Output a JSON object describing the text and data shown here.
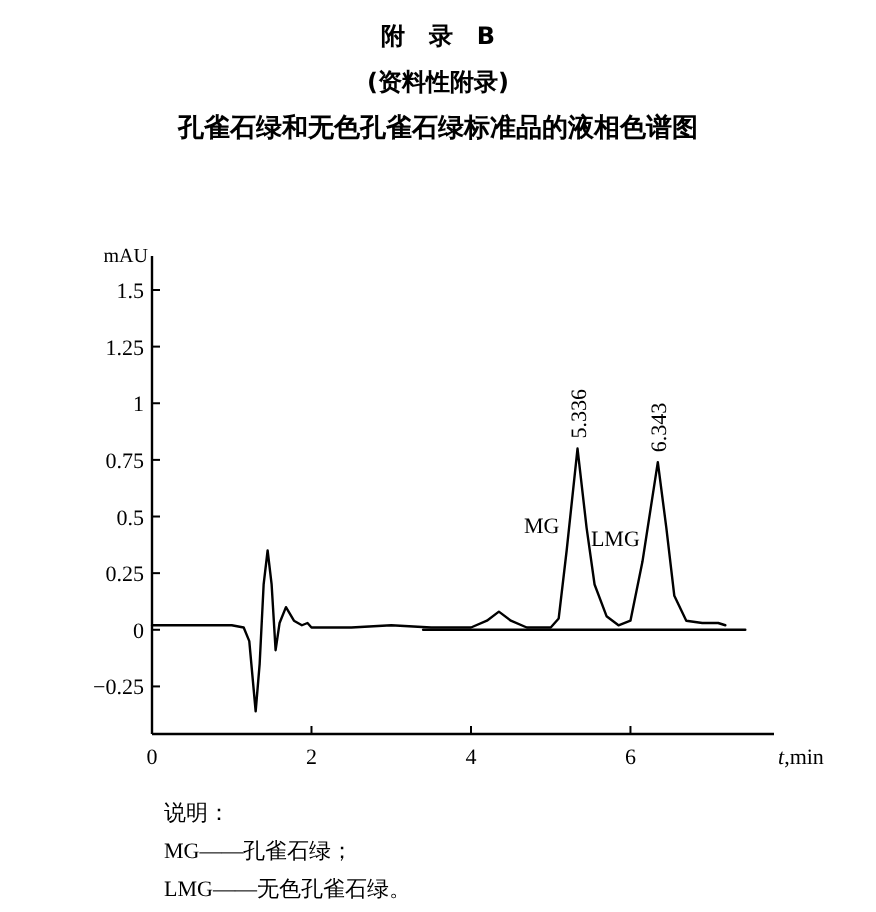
{
  "chart_data": {
    "type": "line",
    "title": "附　录　B",
    "subtitle": "(资料性附录)\n孔雀石绿和无色孔雀石绿标准品的液相色谱图",
    "xlabel": "t,min",
    "ylabel": "mAU",
    "xlim": [
      0,
      7.8
    ],
    "ylim": [
      -0.46,
      1.65
    ],
    "xticks": [
      0,
      2,
      4,
      6
    ],
    "yticks": [
      -0.25,
      0,
      0.25,
      0.5,
      0.75,
      1,
      1.25,
      1.5
    ],
    "grid": false,
    "marker": "none",
    "line_style": "solid",
    "series": [
      {
        "color": "#000000",
        "x": [
          0,
          0.5,
          1.0,
          1.15,
          1.22,
          1.3,
          1.35,
          1.4,
          1.45,
          1.5,
          1.55,
          1.6,
          1.68,
          1.78,
          1.88,
          1.95,
          2.0,
          2.5,
          3.0,
          3.5,
          4.0,
          4.2,
          4.35,
          4.5,
          4.7,
          5.0,
          5.1,
          5.2,
          5.336,
          5.45,
          5.55,
          5.7,
          5.85,
          6.0,
          6.15,
          6.343,
          6.45,
          6.55,
          6.7,
          6.9,
          7.1,
          7.19
        ],
        "values": [
          0.02,
          0.02,
          0.02,
          0.01,
          -0.05,
          -0.36,
          -0.15,
          0.2,
          0.35,
          0.2,
          -0.09,
          0.03,
          0.1,
          0.04,
          0.02,
          0.03,
          0.01,
          0.01,
          0.02,
          0.01,
          0.01,
          0.04,
          0.08,
          0.04,
          0.01,
          0.01,
          0.05,
          0.35,
          0.8,
          0.45,
          0.2,
          0.06,
          0.02,
          0.04,
          0.3,
          0.74,
          0.45,
          0.15,
          0.04,
          0.03,
          0.03,
          0.02
        ]
      },
      {
        "color": "#000000",
        "x": [
          3.4,
          7.44
        ],
        "values": [
          0,
          0
        ]
      }
    ],
    "annotations": [
      {
        "text": "5.336",
        "x": 5.336,
        "y": 0.8
      },
      "MG",
      {
        "text": "6.343",
        "x": 6.343,
        "y": 0.74
      },
      "LMG",
      "说明：",
      "MG——孔雀石绿；",
      "LMG——无色孔雀石绿。"
    ]
  }
}
